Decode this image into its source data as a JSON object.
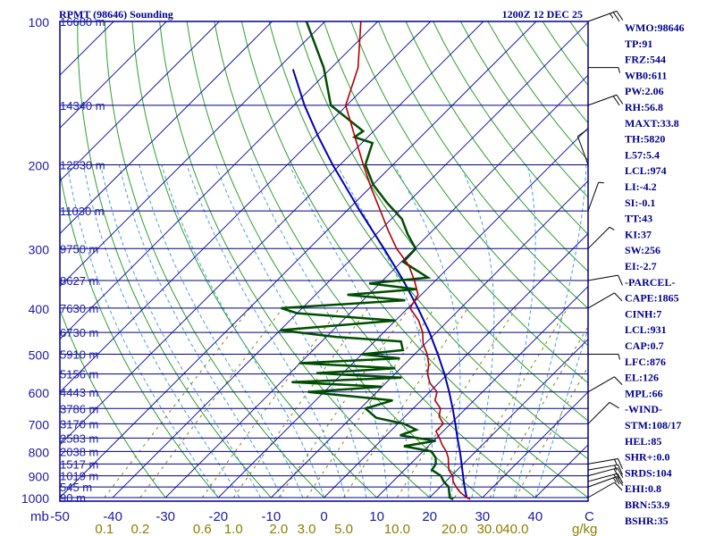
{
  "header": {
    "station": "RPMT (98646) Sounding",
    "time": "1200Z 12 DEC 25"
  },
  "colors": {
    "frame": "#00008b",
    "isobar": "#00008b",
    "isotherm": "#1a1aa6",
    "dry_adiabat": "#2e9e2e",
    "moist_adiabat": "#4aa0d8",
    "mixing_ratio": "#8b7f00",
    "temperature": "#b00000",
    "dewpoint": "#004d00",
    "parcel": "#0000b0",
    "text_blue": "#1a1aa6"
  },
  "chart_data": {
    "type": "skew-t",
    "title": "RPMT (98646) Sounding",
    "valid_time": "1200Z 12 DEC 25",
    "xlabel_left": "mb",
    "xlabel_right": "C",
    "mixing_ratio_unit": "g/kg",
    "pressure_range_mb": [
      1000,
      100
    ],
    "temperature_axis_at_1000mb_c": [
      -50,
      50
    ],
    "pressure_levels": [
      {
        "p": 100,
        "label": "100",
        "height": "16680 m"
      },
      {
        "p": 150,
        "label": "",
        "height": "14340 m"
      },
      {
        "p": 200,
        "label": "200",
        "height": "12530 m"
      },
      {
        "p": 250,
        "label": "",
        "height": "11030 m"
      },
      {
        "p": 300,
        "label": "300",
        "height": "9750 m"
      },
      {
        "p": 350,
        "label": "",
        "height": "8627 m"
      },
      {
        "p": 400,
        "label": "400",
        "height": "7630 m"
      },
      {
        "p": 450,
        "label": "",
        "height": "6730 m"
      },
      {
        "p": 500,
        "label": "500",
        "height": "5910 m"
      },
      {
        "p": 550,
        "label": "",
        "height": "5156 m"
      },
      {
        "p": 600,
        "label": "600",
        "height": "4443 m"
      },
      {
        "p": 650,
        "label": "",
        "height": "3786 m"
      },
      {
        "p": 700,
        "label": "700",
        "height": "3170 m"
      },
      {
        "p": 750,
        "label": "",
        "height": "2583 m"
      },
      {
        "p": 800,
        "label": "800",
        "height": "2038 m"
      },
      {
        "p": 850,
        "label": "",
        "height": "1517 m"
      },
      {
        "p": 900,
        "label": "900",
        "height": "1019 m"
      },
      {
        "p": 950,
        "label": "",
        "height": "545 m"
      },
      {
        "p": 1000,
        "label": "1000",
        "height": "90 m"
      }
    ],
    "temperature_ticks": [
      "-50",
      "-40",
      "-30",
      "-20",
      "-10",
      "0",
      "10",
      "20",
      "30",
      "40"
    ],
    "mixing_ratio_ticks": [
      "0.1",
      "0.2",
      "0.6",
      "1.0",
      "2.0",
      "3.0",
      "5.0",
      "10.0",
      "20.0",
      "30.0",
      "40.0"
    ],
    "mixing_ratio_values": [
      0.1,
      0.2,
      0.6,
      1.0,
      2.0,
      3.0,
      5.0,
      10.0,
      20.0,
      30.0,
      40.0
    ],
    "temperature_profile": [
      {
        "p": 1008,
        "t": 28.0
      },
      {
        "p": 1000,
        "t": 27.0
      },
      {
        "p": 975,
        "t": 24.8
      },
      {
        "p": 950,
        "t": 23.0
      },
      {
        "p": 925,
        "t": 21.4
      },
      {
        "p": 900,
        "t": 20.2
      },
      {
        "p": 875,
        "t": 18.4
      },
      {
        "p": 850,
        "t": 17.2
      },
      {
        "p": 825,
        "t": 16.0
      },
      {
        "p": 800,
        "t": 14.4
      },
      {
        "p": 775,
        "t": 12.4
      },
      {
        "p": 750,
        "t": 10.6
      },
      {
        "p": 725,
        "t": 8.6
      },
      {
        "p": 700,
        "t": 8.6
      },
      {
        "p": 675,
        "t": 6.4
      },
      {
        "p": 650,
        "t": 5.2
      },
      {
        "p": 625,
        "t": 2.6
      },
      {
        "p": 600,
        "t": 1.4
      },
      {
        "p": 575,
        "t": -1.6
      },
      {
        "p": 550,
        "t": -3.8
      },
      {
        "p": 525,
        "t": -5.4
      },
      {
        "p": 500,
        "t": -7.6
      },
      {
        "p": 475,
        "t": -10.4
      },
      {
        "p": 450,
        "t": -12.6
      },
      {
        "p": 425,
        "t": -15.6
      },
      {
        "p": 400,
        "t": -19.6
      },
      {
        "p": 375,
        "t": -20.6
      },
      {
        "p": 350,
        "t": -24.0
      },
      {
        "p": 325,
        "t": -28.0
      },
      {
        "p": 300,
        "t": -33.4
      },
      {
        "p": 275,
        "t": -38.4
      },
      {
        "p": 250,
        "t": -43.6
      },
      {
        "p": 225,
        "t": -49.4
      },
      {
        "p": 200,
        "t": -55.6
      },
      {
        "p": 175,
        "t": -62.4
      },
      {
        "p": 150,
        "t": -70.2
      },
      {
        "p": 125,
        "t": -75.0
      },
      {
        "p": 100,
        "t": -83.2
      }
    ],
    "dewpoint_profile": [
      {
        "p": 1008,
        "t": 24.8
      },
      {
        "p": 1000,
        "t": 23.8
      },
      {
        "p": 950,
        "t": 21.6
      },
      {
        "p": 925,
        "t": 19.6
      },
      {
        "p": 900,
        "t": 18.0
      },
      {
        "p": 875,
        "t": 15.2
      },
      {
        "p": 850,
        "t": 14.8
      },
      {
        "p": 825,
        "t": 13.6
      },
      {
        "p": 800,
        "t": 11.6
      },
      {
        "p": 780,
        "t": 5.4
      },
      {
        "p": 760,
        "t": 10.4
      },
      {
        "p": 740,
        "t": 2.6
      },
      {
        "p": 720,
        "t": 4.6
      },
      {
        "p": 700,
        "t": 1.2
      },
      {
        "p": 680,
        "t": -5.2
      },
      {
        "p": 650,
        "t": -9.0
      },
      {
        "p": 625,
        "t": -5.4
      },
      {
        "p": 600,
        "t": -23.0
      },
      {
        "p": 585,
        "t": -10.0
      },
      {
        "p": 572,
        "t": -28.0
      },
      {
        "p": 560,
        "t": -8.0
      },
      {
        "p": 548,
        "t": -25.0
      },
      {
        "p": 535,
        "t": -11.0
      },
      {
        "p": 522,
        "t": -30.0
      },
      {
        "p": 510,
        "t": -12.0
      },
      {
        "p": 500,
        "t": -20.0
      },
      {
        "p": 490,
        "t": -13.0
      },
      {
        "p": 470,
        "t": -15.0
      },
      {
        "p": 460,
        "t": -28.0
      },
      {
        "p": 445,
        "t": -40.0
      },
      {
        "p": 425,
        "t": -20.0
      },
      {
        "p": 410,
        "t": -40.0
      },
      {
        "p": 400,
        "t": -44.0
      },
      {
        "p": 385,
        "t": -22.0
      },
      {
        "p": 375,
        "t": -34.0
      },
      {
        "p": 365,
        "t": -22.0
      },
      {
        "p": 355,
        "t": -32.0
      },
      {
        "p": 345,
        "t": -22.0
      },
      {
        "p": 320,
        "t": -29.6
      },
      {
        "p": 300,
        "t": -29.8
      },
      {
        "p": 280,
        "t": -34.0
      },
      {
        "p": 260,
        "t": -38.0
      },
      {
        "p": 240,
        "t": -44.0
      },
      {
        "p": 220,
        "t": -50.0
      },
      {
        "p": 200,
        "t": -55.2
      },
      {
        "p": 180,
        "t": -58.0
      },
      {
        "p": 175,
        "t": -62.5
      },
      {
        "p": 170,
        "t": -62.0
      },
      {
        "p": 150,
        "t": -73.0
      },
      {
        "p": 125,
        "t": -81.5
      },
      {
        "p": 100,
        "t": -93.5
      }
    ],
    "parcel_profile": [
      {
        "p": 1000,
        "t": 27.0
      },
      {
        "p": 950,
        "t": 24.6
      },
      {
        "p": 931,
        "t": 23.7
      },
      {
        "p": 900,
        "t": 22.2
      },
      {
        "p": 850,
        "t": 19.7
      },
      {
        "p": 800,
        "t": 17.0
      },
      {
        "p": 750,
        "t": 14.0
      },
      {
        "p": 700,
        "t": 10.9
      },
      {
        "p": 650,
        "t": 7.5
      },
      {
        "p": 600,
        "t": 3.7
      },
      {
        "p": 550,
        "t": -0.6
      },
      {
        "p": 500,
        "t": -5.6
      },
      {
        "p": 450,
        "t": -11.3
      },
      {
        "p": 400,
        "t": -18.1
      },
      {
        "p": 350,
        "t": -26.1
      },
      {
        "p": 300,
        "t": -35.8
      },
      {
        "p": 250,
        "t": -47.5
      },
      {
        "p": 200,
        "t": -61.4
      },
      {
        "p": 175,
        "t": -69.3
      },
      {
        "p": 150,
        "t": -78.0
      },
      {
        "p": 126,
        "t": -87.0
      }
    ],
    "wind_barbs": [
      {
        "p": 1000,
        "dir": 60,
        "spd": 10
      },
      {
        "p": 950,
        "dir": 70,
        "spd": 15
      },
      {
        "p": 925,
        "dir": 75,
        "spd": 20
      },
      {
        "p": 900,
        "dir": 75,
        "spd": 20
      },
      {
        "p": 875,
        "dir": 80,
        "spd": 15
      },
      {
        "p": 850,
        "dir": 80,
        "spd": 15
      },
      {
        "p": 700,
        "dir": 45,
        "spd": 10
      },
      {
        "p": 600,
        "dir": 60,
        "spd": 10
      },
      {
        "p": 500,
        "dir": 90,
        "spd": 5
      },
      {
        "p": 400,
        "dir": 60,
        "spd": 10
      },
      {
        "p": 350,
        "dir": 80,
        "spd": 10
      },
      {
        "p": 300,
        "dir": 45,
        "spd": 5
      },
      {
        "p": 250,
        "dir": 20,
        "spd": 5
      },
      {
        "p": 200,
        "dir": 340,
        "spd": 10
      },
      {
        "p": 150,
        "dir": 70,
        "spd": 20
      },
      {
        "p": 125,
        "dir": 90,
        "spd": 5
      },
      {
        "p": 100,
        "dir": 70,
        "spd": 25
      }
    ]
  },
  "indices": [
    "WMO:98646",
    "TP:91",
    "FRZ:544",
    "WB0:611",
    "PW:2.06",
    "RH:56.8",
    "MAXT:33.8",
    "TH:5820",
    "L57:5.4",
    "LCL:974",
    "LI:-4.2",
    "SI:-0.1",
    "TT:43",
    "KI:37",
    "SW:256",
    "EI:-2.7",
    "-PARCEL-",
    "CAPE:1865",
    "CINH:7",
    "LCL:931",
    "CAP:0.7",
    "LFC:876",
    "EL:126",
    "MPL:66",
    "-WIND-",
    "STM:108/17",
    "HEL:85",
    "SHR+:0.0",
    "SRDS:104",
    "EHI:0.8",
    "BRN:53.9",
    "BSHR:35"
  ]
}
